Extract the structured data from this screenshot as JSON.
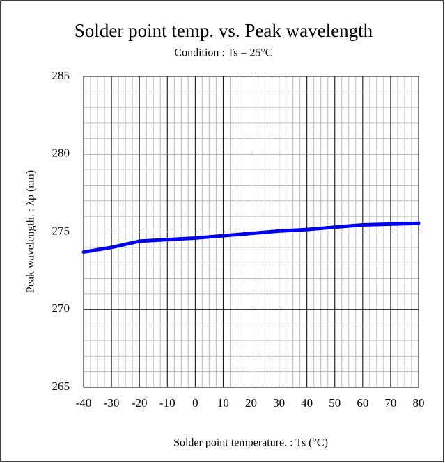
{
  "chart_data": {
    "type": "line",
    "title": "Solder point temp. vs. Peak wavelength",
    "subtitle": "Condition : Ts = 25°C",
    "x_label": "Solder point temperature. : Ts (°C)",
    "y_label": "Peak wavelength. : λp (nm)",
    "x": [
      -40,
      -30,
      -20,
      -10,
      0,
      10,
      20,
      30,
      40,
      50,
      60,
      70,
      80
    ],
    "series": [
      {
        "name": "Peak wavelength",
        "color": "#0000ee",
        "values": [
          273.7,
          274.0,
          274.4,
          274.5,
          274.6,
          274.75,
          274.9,
          275.05,
          275.15,
          275.3,
          275.45,
          275.5,
          275.55
        ]
      }
    ],
    "xlim": [
      -40,
      80
    ],
    "xticks": [
      -40,
      -30,
      -20,
      -10,
      0,
      10,
      20,
      30,
      40,
      50,
      60,
      70,
      80
    ],
    "ylim": [
      265,
      285
    ],
    "yticks": [
      265,
      270,
      275,
      280,
      285
    ],
    "grid": true,
    "minor_grid": {
      "x": 4,
      "y": 5
    }
  }
}
